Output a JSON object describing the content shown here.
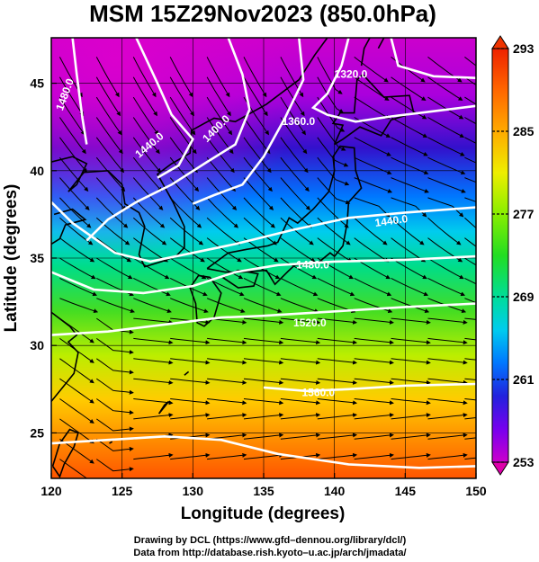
{
  "title": "MSM 15Z29Nov2023 (850.0hPa)",
  "x_axis": {
    "label": "Longitude (degrees)",
    "range": [
      120,
      150
    ],
    "ticks": [
      "120",
      "125",
      "130",
      "135",
      "140",
      "145",
      "150"
    ]
  },
  "y_axis": {
    "label": "Latitude  (degrees)",
    "range": [
      22.4,
      47.6
    ],
    "ticks": [
      "25",
      "30",
      "35",
      "40",
      "45"
    ]
  },
  "colorbar": {
    "range": [
      253,
      293
    ],
    "labels": [
      "293",
      "285",
      "277",
      "269",
      "261",
      "253"
    ],
    "colors": [
      "#cc00cc",
      "#8800ff",
      "#3300dd",
      "#0044ff",
      "#0099ff",
      "#00ddee",
      "#00ee99",
      "#22dd22",
      "#99ee00",
      "#ddee00",
      "#ffcc00",
      "#ff8800",
      "#ff4400",
      "#ee2200"
    ]
  },
  "contour_labels": [
    "1480.0",
    "1440.0",
    "1400.0",
    "1360.0",
    "1320.0",
    "1440.0",
    "1480.0",
    "1520.0",
    "1560.0"
  ],
  "credits": {
    "line1": "Drawing by DCL (https://www.gfd–dennou.org/library/dcl/)",
    "line2": "Data from http://database.rish.kyoto–u.ac.jp/arch/jmadata/"
  },
  "colors": {
    "contour": "#ffffff",
    "coast": "#000000",
    "streamline": "#000000"
  }
}
